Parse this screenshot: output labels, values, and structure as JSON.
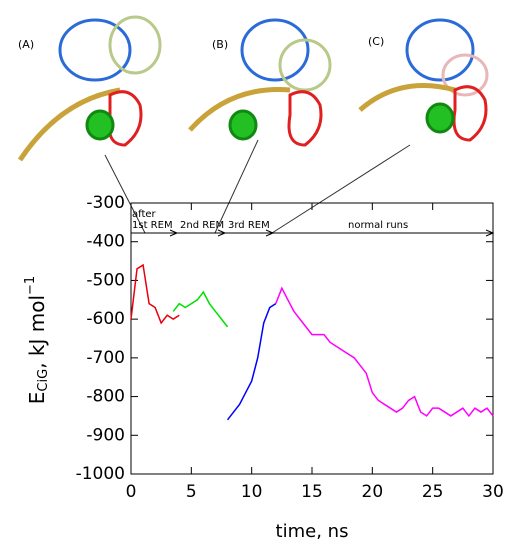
{
  "chart_data": {
    "type": "line",
    "xlabel": "time, ns",
    "ylabel": {
      "main": "E",
      "sub": "CiG",
      "rest": ", kJ mol",
      "sup": "−1"
    },
    "panel_labels": [
      "(A)",
      "(B)",
      "(C)"
    ],
    "annotations": [
      "after",
      "1st REM",
      "2nd REM",
      "3rd REM",
      "normal runs"
    ],
    "xlim": [
      0,
      30
    ],
    "xticks": [
      0,
      5,
      10,
      15,
      20,
      25,
      30
    ],
    "ylim": [
      -1000,
      -300
    ],
    "yticks": [
      -1000,
      -900,
      -800,
      -700,
      -600,
      -500,
      -400,
      -300
    ],
    "x": [
      0,
      0.5,
      1,
      1.5,
      2,
      2.5,
      3,
      3.5,
      4,
      4.5,
      5,
      5.5,
      6,
      6.5,
      7,
      7.5,
      8,
      8.5,
      9,
      9.5,
      10,
      10.5,
      11,
      11.5,
      12,
      12.5,
      13,
      13.5,
      14,
      14.5,
      15,
      15.5,
      16,
      16.5,
      17,
      17.5,
      18,
      18.5,
      19,
      19.5,
      20,
      20.5,
      21,
      21.5,
      22,
      22.5,
      23,
      23.5,
      24,
      24.5,
      25,
      25.5,
      26,
      26.5,
      27,
      27.5,
      28,
      28.5,
      29,
      29.5,
      30
    ],
    "series": [
      {
        "color": "#e8000b",
        "values": [
          -600,
          -470,
          -460,
          -560,
          -570,
          -610,
          -590,
          -600,
          -590,
          null,
          null,
          null,
          null,
          null,
          null,
          null,
          null,
          null,
          null,
          null,
          null,
          null,
          null,
          null,
          null,
          null,
          null,
          null,
          null,
          null,
          null,
          null,
          null,
          null,
          null,
          null,
          null,
          null,
          null,
          null,
          null,
          null,
          null,
          null,
          null,
          null,
          null,
          null,
          null,
          null,
          null,
          null,
          null,
          null,
          null,
          null,
          null,
          null,
          null,
          null,
          null
        ]
      },
      {
        "color": "#00e000",
        "values": [
          null,
          null,
          null,
          null,
          null,
          null,
          null,
          -580,
          -560,
          -570,
          -560,
          -550,
          -530,
          -560,
          -580,
          -600,
          -620,
          null,
          null,
          null,
          null,
          null,
          null,
          null,
          null,
          null,
          null,
          null,
          null,
          null,
          null,
          null,
          null,
          null,
          null,
          null,
          null,
          null,
          null,
          null,
          null,
          null,
          null,
          null,
          null,
          null,
          null,
          null,
          null,
          null,
          null,
          null,
          null,
          null,
          null,
          null,
          null,
          null,
          null,
          null,
          null
        ]
      },
      {
        "color": "#0000ff",
        "values": [
          null,
          null,
          null,
          null,
          null,
          null,
          null,
          null,
          null,
          null,
          null,
          null,
          null,
          null,
          null,
          null,
          -860,
          -840,
          -820,
          -790,
          -760,
          -700,
          -610,
          -570,
          -560,
          null,
          null,
          null,
          null,
          null,
          null,
          null,
          null,
          null,
          null,
          null,
          null,
          null,
          null,
          null,
          null,
          null,
          null,
          null,
          null,
          null,
          null,
          null,
          null,
          null,
          null,
          null,
          null,
          null,
          null,
          null,
          null,
          null,
          null,
          null,
          null
        ]
      },
      {
        "color": "#ff00ff",
        "values": [
          null,
          null,
          null,
          null,
          null,
          null,
          null,
          null,
          null,
          null,
          null,
          null,
          null,
          null,
          null,
          null,
          null,
          null,
          null,
          null,
          null,
          null,
          null,
          null,
          -560,
          -520,
          -550,
          -580,
          -600,
          -620,
          -640,
          -640,
          -640,
          -660,
          -670,
          -680,
          -690,
          -700,
          -720,
          -740,
          -790,
          -810,
          -820,
          -830,
          -840,
          -830,
          -810,
          -800,
          -840,
          -850,
          -830,
          -830,
          -840,
          -850,
          -840,
          -830,
          -850,
          -830,
          -840,
          -830,
          -850
        ]
      }
    ]
  }
}
